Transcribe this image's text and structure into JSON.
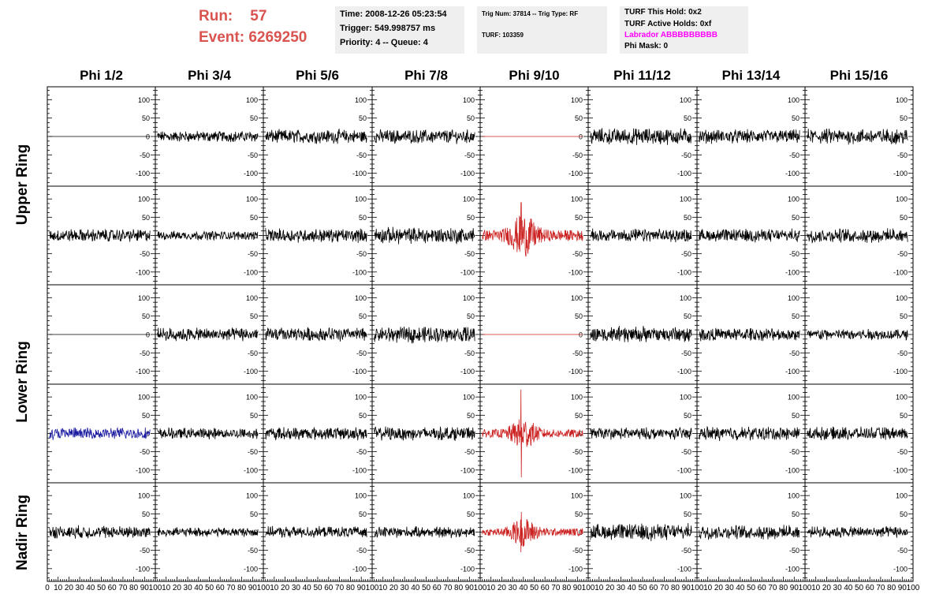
{
  "header": {
    "run_label": "Run:",
    "run_value": "57",
    "event_label": "Event:",
    "event_value": "6269250",
    "time": "Time: 2008-12-26 05:23:54",
    "trigger": "Trigger: 549.998757 ms",
    "priority": "Priority: 4 -- Queue: 4",
    "trig_num": "Trig Num: 37814 -- Trig Type: RF",
    "turf": "TURF: 103359",
    "turf_this_hold": "TURF This Hold: 0x2",
    "turf_active_holds": "TURF Active Holds: 0xf",
    "labrador": "Labrador ABBBBBBBBB",
    "phi_mask": "Phi Mask: 0"
  },
  "colors": {
    "header_red": "#d9534f",
    "labrador": "#ff00ff",
    "trace": "#000000",
    "trace_trigger": "#cc2222",
    "trace_alt": "#1a1aa0",
    "info_bg": "#efefef"
  },
  "columns": [
    "Phi 1/2",
    "Phi 3/4",
    "Phi 5/6",
    "Phi 7/8",
    "Phi 9/10",
    "Phi 11/12",
    "Phi 13/14",
    "Phi 15/16"
  ],
  "ring_labels": [
    "Upper Ring",
    "Lower Ring",
    "Nadir Ring"
  ],
  "chart_data": {
    "type": "line",
    "grid": false,
    "xlim": [
      0,
      100
    ],
    "ylim": [
      -135,
      135
    ],
    "y_ticks": [
      "100",
      "50",
      "0",
      "-50",
      "-100"
    ],
    "x_ticks": [
      "0",
      "10",
      "20",
      "30",
      "40",
      "50",
      "60",
      "70",
      "80",
      "90",
      "100"
    ],
    "rows": [
      {
        "ring": "Upper Ring",
        "panels": [
          {
            "style": "flat",
            "amp": 0,
            "color": "black"
          },
          {
            "style": "noise",
            "amp": 12,
            "color": "black"
          },
          {
            "style": "noise",
            "amp": 15,
            "color": "black"
          },
          {
            "style": "noise",
            "amp": 15,
            "color": "black"
          },
          {
            "style": "flat",
            "amp": 0,
            "color": "red"
          },
          {
            "style": "noise",
            "amp": 18,
            "color": "black"
          },
          {
            "style": "noise",
            "amp": 15,
            "color": "black"
          },
          {
            "style": "noise",
            "amp": 17,
            "color": "black"
          }
        ]
      },
      {
        "ring": "Upper Ring",
        "panels": [
          {
            "style": "noise",
            "amp": 14,
            "color": "black"
          },
          {
            "style": "noise",
            "amp": 10,
            "color": "black"
          },
          {
            "style": "noise",
            "amp": 15,
            "color": "black"
          },
          {
            "style": "noise",
            "amp": 18,
            "color": "black"
          },
          {
            "style": "pulse",
            "amp": 30,
            "peak": 90,
            "color": "red"
          },
          {
            "style": "noise",
            "amp": 14,
            "color": "black"
          },
          {
            "style": "noise",
            "amp": 14,
            "color": "black"
          },
          {
            "style": "noise",
            "amp": 15,
            "color": "black"
          }
        ]
      },
      {
        "ring": "Lower Ring",
        "panels": [
          {
            "style": "flat",
            "amp": 0,
            "color": "black"
          },
          {
            "style": "noise",
            "amp": 14,
            "color": "black"
          },
          {
            "style": "noise",
            "amp": 15,
            "color": "black"
          },
          {
            "style": "noise",
            "amp": 17,
            "color": "black"
          },
          {
            "style": "flat",
            "amp": 0,
            "color": "red"
          },
          {
            "style": "noise",
            "amp": 18,
            "color": "black"
          },
          {
            "style": "noise",
            "amp": 14,
            "color": "black"
          },
          {
            "style": "noise",
            "amp": 12,
            "color": "black"
          }
        ]
      },
      {
        "ring": "Lower Ring",
        "panels": [
          {
            "style": "noise",
            "amp": 13,
            "color": "blue"
          },
          {
            "style": "noise",
            "amp": 12,
            "color": "black"
          },
          {
            "style": "noise",
            "amp": 14,
            "color": "black"
          },
          {
            "style": "noise",
            "amp": 15,
            "color": "black"
          },
          {
            "style": "pulse",
            "amp": 22,
            "peak": 120,
            "color": "red"
          },
          {
            "style": "noise",
            "amp": 13,
            "color": "black"
          },
          {
            "style": "noise",
            "amp": 15,
            "color": "black"
          },
          {
            "style": "noise",
            "amp": 14,
            "color": "black"
          }
        ]
      },
      {
        "ring": "Nadir Ring",
        "panels": [
          {
            "style": "noise",
            "amp": 14,
            "color": "black"
          },
          {
            "style": "noise",
            "amp": 10,
            "color": "black"
          },
          {
            "style": "noise",
            "amp": 12,
            "color": "black"
          },
          {
            "style": "noise",
            "amp": 12,
            "color": "black"
          },
          {
            "style": "pulse",
            "amp": 20,
            "peak": 55,
            "color": "red"
          },
          {
            "style": "noise",
            "amp": 18,
            "color": "black"
          },
          {
            "style": "noise",
            "amp": 15,
            "color": "black"
          },
          {
            "style": "noise",
            "amp": 12,
            "color": "black"
          }
        ]
      }
    ]
  }
}
